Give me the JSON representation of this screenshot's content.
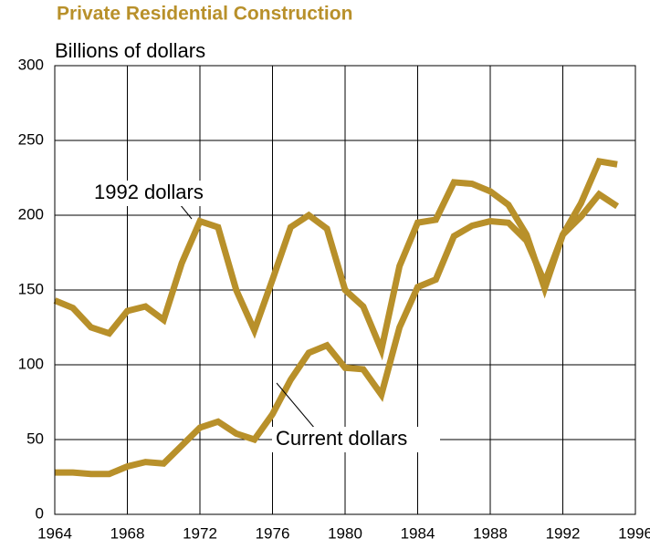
{
  "chart_data": {
    "type": "line",
    "title": "Private Residential Construction",
    "subtitle": "Billions of dollars",
    "x": [
      1964,
      1965,
      1966,
      1967,
      1968,
      1969,
      1970,
      1971,
      1972,
      1973,
      1974,
      1975,
      1976,
      1977,
      1978,
      1979,
      1980,
      1981,
      1982,
      1983,
      1984,
      1985,
      1986,
      1987,
      1988,
      1989,
      1990,
      1991,
      1992,
      1993,
      1994,
      1995
    ],
    "series": [
      {
        "name": "1992 dollars",
        "color": "#b8902a",
        "values": [
          143,
          138,
          125,
          121,
          136,
          139,
          130,
          168,
          196,
          192,
          150,
          123,
          157,
          192,
          200,
          191,
          150,
          139,
          110,
          166,
          195,
          197,
          222,
          221,
          216,
          207,
          187,
          151,
          187,
          208,
          236,
          234
        ]
      },
      {
        "name": "Current dollars",
        "color": "#b8902a",
        "values": [
          28,
          28,
          27,
          27,
          32,
          35,
          34,
          46,
          58,
          62,
          54,
          50,
          67,
          90,
          108,
          113,
          98,
          97,
          80,
          125,
          152,
          157,
          186,
          193,
          196,
          195,
          183,
          155,
          187,
          199,
          214,
          206
        ]
      }
    ],
    "xlim": [
      1964,
      1996
    ],
    "xticks": [
      1964,
      1968,
      1972,
      1976,
      1980,
      1984,
      1988,
      1992,
      1996
    ],
    "ylim": [
      0,
      300
    ],
    "yticks": [
      0,
      50,
      100,
      150,
      200,
      250,
      300
    ],
    "grid": true
  }
}
